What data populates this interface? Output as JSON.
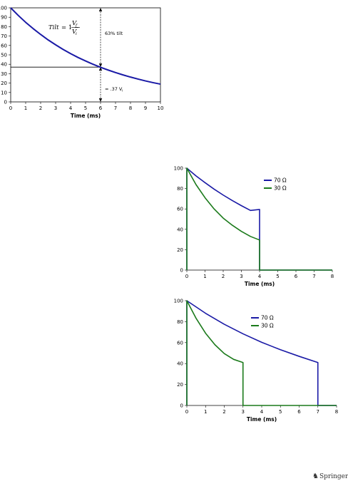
{
  "footer": {
    "text": "Springer",
    "icon": "springer-horse-icon"
  },
  "chart_data": [
    {
      "type": "line",
      "xlabel": "Time (ms)",
      "ylabel": "",
      "xlim": [
        0,
        10
      ],
      "ylim": [
        0,
        100
      ],
      "x_ticks": [
        "0",
        "1",
        "2",
        "3",
        "4",
        "5",
        "6",
        "7",
        "8",
        "9",
        "10"
      ],
      "y_ticks": [
        "0",
        "10",
        "20",
        "30",
        "40",
        "50",
        "60",
        "70",
        "80",
        "90",
        "100"
      ],
      "series": [
        {
          "color": "#1a1aa6",
          "x": [
            0,
            0.5,
            1,
            1.5,
            2,
            2.5,
            3,
            3.5,
            4,
            4.5,
            5,
            5.5,
            6,
            6.5,
            7,
            7.5,
            8,
            8.5,
            9,
            9.5,
            10
          ],
          "y": [
            100,
            92.0,
            84.6,
            77.9,
            71.7,
            65.9,
            60.7,
            55.8,
            51.3,
            47.2,
            43.5,
            40.0,
            36.8,
            33.9,
            31.2,
            28.7,
            26.4,
            24.3,
            22.3,
            20.5,
            18.9
          ]
        }
      ],
      "reference_line_y": 37,
      "marker_x": 6,
      "annotations": {
        "formula_lhs": "Tilt",
        "formula_eq": "= 1 −",
        "formula_num": "V",
        "formula_num_sub": "f",
        "formula_den": "V",
        "formula_den_sub": "i",
        "tilt_label": "63% tilt",
        "vf_label": "= .37 V",
        "vf_label_sub": "i"
      }
    },
    {
      "type": "line",
      "xlabel": "Time (ms)",
      "ylabel": "",
      "xlim": [
        0,
        8
      ],
      "ylim": [
        0,
        100
      ],
      "x_ticks": [
        "0",
        "1",
        "2",
        "3",
        "4",
        "5",
        "6",
        "7",
        "8"
      ],
      "y_ticks": [
        "0",
        "20",
        "40",
        "60",
        "80",
        "100"
      ],
      "legend_position": "top-right",
      "series": [
        {
          "name": "70 Ω",
          "color": "#1a1aa6",
          "x": [
            0,
            0,
            0.5,
            1,
            1.5,
            2,
            2.5,
            3,
            3.5,
            4,
            4,
            8
          ],
          "y": [
            0,
            100,
            92.5,
            85.8,
            79.4,
            73.6,
            68.2,
            63.2,
            58.5,
            59.5,
            0,
            0
          ]
        },
        {
          "name": "30 Ω",
          "color": "#1b7a1b",
          "x": [
            0,
            0,
            0.5,
            1,
            1.5,
            2,
            2.5,
            3,
            3.5,
            4,
            4,
            8
          ],
          "y": [
            0,
            100,
            84,
            71,
            60,
            51,
            44,
            38,
            33,
            29.5,
            0,
            0
          ]
        }
      ]
    },
    {
      "type": "line",
      "xlabel": "Time (ms)",
      "ylabel": "",
      "xlim": [
        0,
        8
      ],
      "ylim": [
        0,
        100
      ],
      "x_ticks": [
        "0",
        "1",
        "2",
        "3",
        "4",
        "5",
        "6",
        "7",
        "8"
      ],
      "y_ticks": [
        "0",
        "20",
        "40",
        "60",
        "80",
        "100"
      ],
      "legend_position": "top-right",
      "series": [
        {
          "name": "70 Ω",
          "color": "#1a1aa6",
          "x": [
            0,
            0,
            1,
            2,
            3,
            4,
            5,
            6,
            7,
            7,
            8
          ],
          "y": [
            0,
            100,
            88,
            77.5,
            68.4,
            60.3,
            53.2,
            46.9,
            41,
            0,
            0
          ]
        },
        {
          "name": "30 Ω",
          "color": "#1b7a1b",
          "x": [
            0,
            0,
            0.5,
            1,
            1.5,
            2,
            2.5,
            3,
            3,
            8
          ],
          "y": [
            0,
            100,
            83,
            69,
            58,
            49.5,
            44,
            41,
            0,
            0
          ]
        }
      ]
    }
  ]
}
